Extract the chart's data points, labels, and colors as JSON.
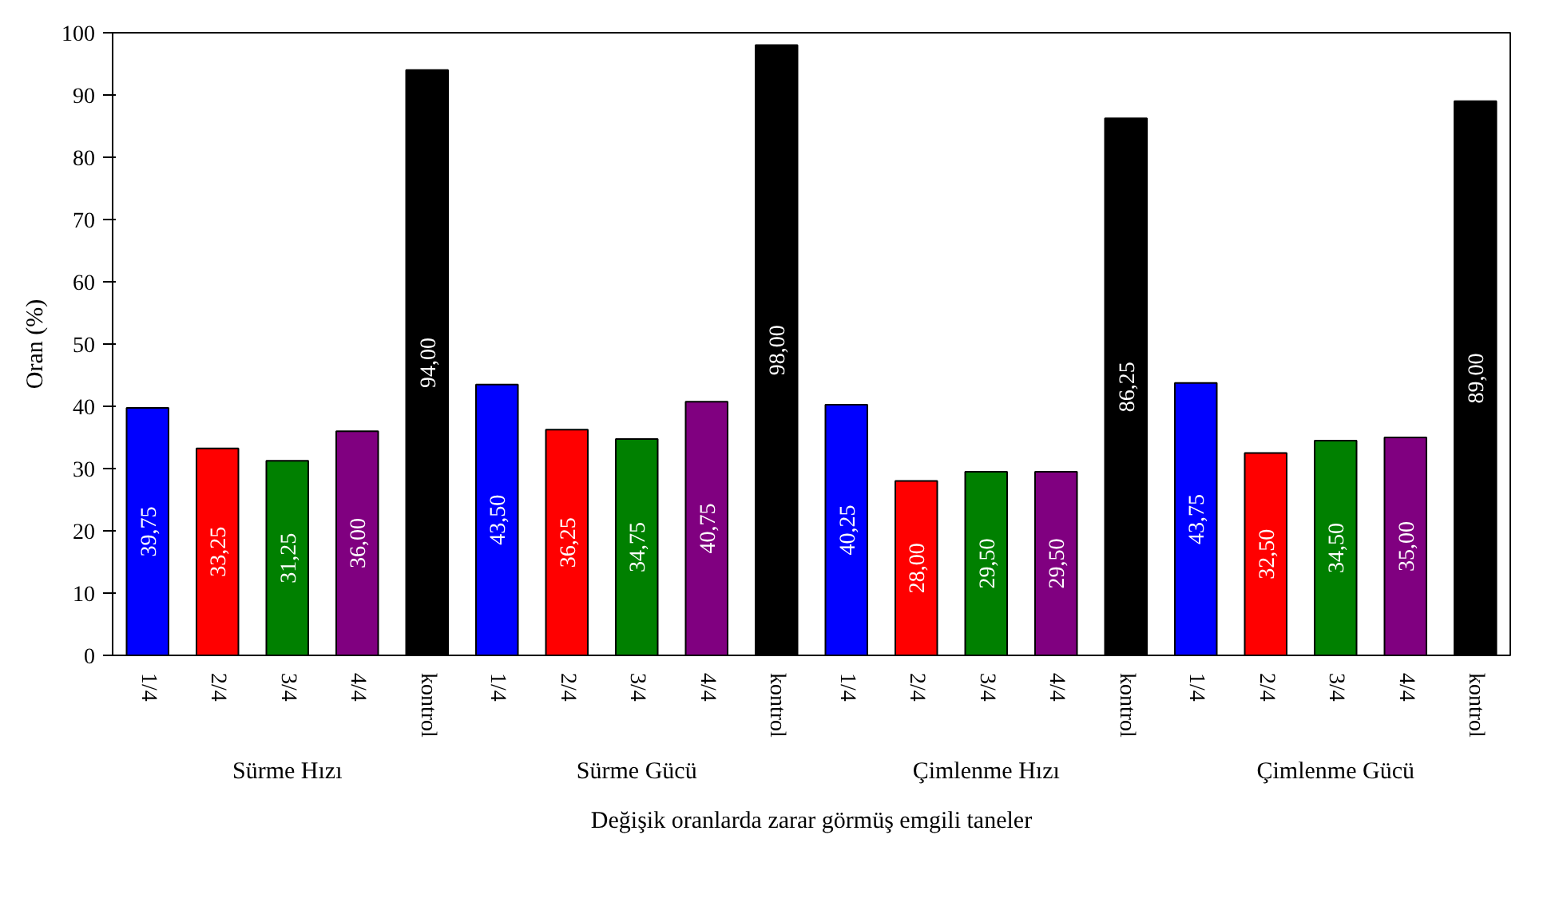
{
  "chart_data": {
    "type": "bar",
    "xlabel": "Değişik oranlarda zarar görmüş emgili taneler",
    "ylabel": "Oran (%)",
    "categories": [
      "1/4",
      "2/4",
      "3/4",
      "4/4",
      "kontrol",
      "1/4",
      "2/4",
      "3/4",
      "4/4",
      "kontrol",
      "1/4",
      "2/4",
      "3/4",
      "4/4",
      "kontrol",
      "1/4",
      "2/4",
      "3/4",
      "4/4",
      "kontrol"
    ],
    "annotations": [
      "Sürme Hızı",
      "Sürme Gücü",
      "Çimlenme Hızı",
      "Çimlenme Gücü"
    ],
    "values": [
      39.75,
      33.25,
      31.25,
      36.0,
      94.0,
      43.5,
      36.25,
      34.75,
      40.75,
      98.0,
      40.25,
      28.0,
      29.5,
      29.5,
      86.25,
      43.75,
      32.5,
      34.5,
      35.0,
      89.0
    ],
    "value_labels": [
      "39,75",
      "33,25",
      "31,25",
      "36,00",
      "94,00",
      "43,50",
      "36,25",
      "34,75",
      "40,75",
      "98,00",
      "40,25",
      "28,00",
      "29,50",
      "29,50",
      "86,25",
      "43,75",
      "32,50",
      "34,50",
      "35,00",
      "89,00"
    ],
    "colors": [
      "#0000ff",
      "#ff0000",
      "#008000",
      "#800080",
      "#000000",
      "#0000ff",
      "#ff0000",
      "#008000",
      "#800080",
      "#000000",
      "#0000ff",
      "#ff0000",
      "#008000",
      "#800080",
      "#000000",
      "#0000ff",
      "#ff0000",
      "#008000",
      "#800080",
      "#000000"
    ],
    "ylim": [
      0,
      100
    ],
    "yticks": [
      0,
      10,
      20,
      30,
      40,
      50,
      60,
      70,
      80,
      90,
      100
    ],
    "grid": false
  }
}
